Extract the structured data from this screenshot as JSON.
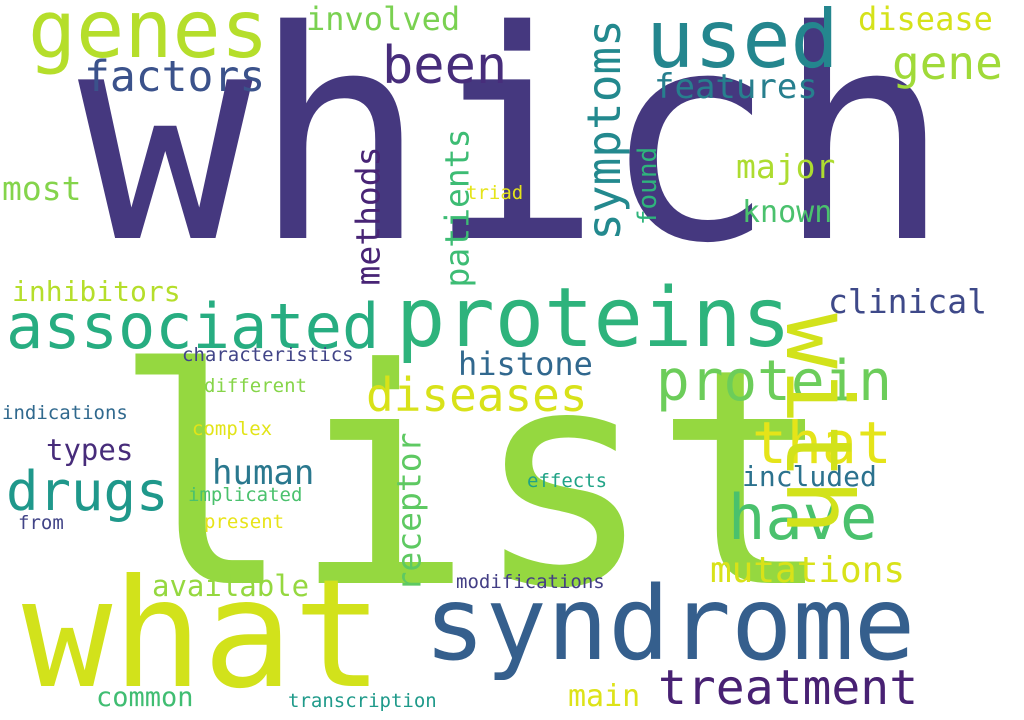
{
  "palette": {
    "dark_purple": "#45387f",
    "purple": "#472878",
    "blue": "#345c8c",
    "teal": "#22878d",
    "green": "#28ae80",
    "light_green": "#5ec962",
    "lime": "#98d83e",
    "yellow": "#d6e11f",
    "bright_yellow": "#e6e41a",
    "background": "#ffffff"
  },
  "words": [
    {
      "text": "which",
      "color": "#45387f"
    },
    {
      "text": "list",
      "color": "#95d840"
    },
    {
      "text": "what",
      "color": "#d2e21b"
    },
    {
      "text": "syndrome",
      "color": "#355f8d"
    },
    {
      "text": "proteins",
      "color": "#2eb37c"
    },
    {
      "text": "with",
      "color": "#d2e21b"
    },
    {
      "text": "associated",
      "color": "#27ad81"
    },
    {
      "text": "genes",
      "color": "#b5de2b"
    },
    {
      "text": "used",
      "color": "#24868e"
    },
    {
      "text": "protein",
      "color": "#6ccd5a"
    },
    {
      "text": "treatment",
      "color": "#482173"
    },
    {
      "text": "have",
      "color": "#4ac16d"
    },
    {
      "text": "drugs",
      "color": "#1f988b"
    },
    {
      "text": "that",
      "color": "#e5e419"
    },
    {
      "text": "diseases",
      "color": "#d8e219"
    },
    {
      "text": "symptoms",
      "color": "#23898e"
    },
    {
      "text": "factors",
      "color": "#3b528b"
    },
    {
      "text": "been",
      "color": "#472d7b"
    },
    {
      "text": "mutations",
      "color": "#d8e219"
    },
    {
      "text": "gene",
      "color": "#a0da39"
    },
    {
      "text": "disease",
      "color": "#d5e21a"
    },
    {
      "text": "patients",
      "color": "#3dbc74"
    },
    {
      "text": "features",
      "color": "#277f8e"
    },
    {
      "text": "involved",
      "color": "#7ad151"
    },
    {
      "text": "methods",
      "color": "#482475"
    },
    {
      "text": "receptor",
      "color": "#5ec962"
    },
    {
      "text": "histone",
      "color": "#31688e"
    },
    {
      "text": "human",
      "color": "#2a788e"
    },
    {
      "text": "major",
      "color": "#addc30"
    },
    {
      "text": "clinical",
      "color": "#3e4989"
    },
    {
      "text": "known",
      "color": "#4ac16d"
    },
    {
      "text": "most",
      "color": "#84d44b"
    },
    {
      "text": "available",
      "color": "#95d840"
    },
    {
      "text": "included",
      "color": "#2c728e"
    },
    {
      "text": "inhibitors",
      "color": "#b5de2b"
    },
    {
      "text": "found",
      "color": "#2fb47c"
    },
    {
      "text": "main",
      "color": "#dde318"
    },
    {
      "text": "common",
      "color": "#40bd72"
    },
    {
      "text": "types",
      "color": "#472c7a"
    },
    {
      "text": "characteristics",
      "color": "#414487"
    },
    {
      "text": "different",
      "color": "#86d549"
    },
    {
      "text": "indications",
      "color": "#30698e"
    },
    {
      "text": "complex",
      "color": "#e2e418"
    },
    {
      "text": "implicated",
      "color": "#4ac16d"
    },
    {
      "text": "present",
      "color": "#e8e419"
    },
    {
      "text": "from",
      "color": "#414487"
    },
    {
      "text": "effects",
      "color": "#20a386"
    },
    {
      "text": "modifications",
      "color": "#433e85"
    },
    {
      "text": "transcription",
      "color": "#1f9a8a"
    },
    {
      "text": "triad",
      "color": "#e5e419"
    }
  ]
}
